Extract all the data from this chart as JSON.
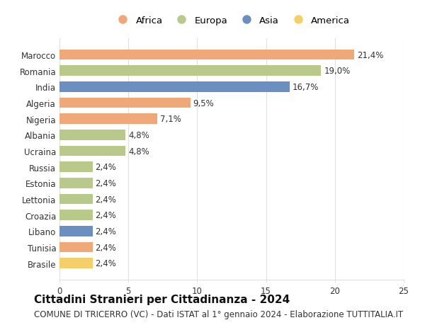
{
  "countries": [
    "Marocco",
    "Romania",
    "India",
    "Algeria",
    "Nigeria",
    "Albania",
    "Ucraina",
    "Russia",
    "Estonia",
    "Lettonia",
    "Croazia",
    "Libano",
    "Tunisia",
    "Brasile"
  ],
  "values": [
    21.4,
    19.0,
    16.7,
    9.5,
    7.1,
    4.8,
    4.8,
    2.4,
    2.4,
    2.4,
    2.4,
    2.4,
    2.4,
    2.4
  ],
  "labels": [
    "21,4%",
    "19,0%",
    "16,7%",
    "9,5%",
    "7,1%",
    "4,8%",
    "4,8%",
    "2,4%",
    "2,4%",
    "2,4%",
    "2,4%",
    "2,4%",
    "2,4%",
    "2,4%"
  ],
  "continents": [
    "Africa",
    "Europa",
    "Asia",
    "Africa",
    "Africa",
    "Europa",
    "Europa",
    "Europa",
    "Europa",
    "Europa",
    "Europa",
    "Asia",
    "Africa",
    "America"
  ],
  "colors": {
    "Africa": "#F0A878",
    "Europa": "#B8C98A",
    "Asia": "#6A8FC0",
    "America": "#F5D06A"
  },
  "legend_order": [
    "Africa",
    "Europa",
    "Asia",
    "America"
  ],
  "title": "Cittadini Stranieri per Cittadinanza - 2024",
  "subtitle": "COMUNE DI TRICERRO (VC) - Dati ISTAT al 1° gennaio 2024 - Elaborazione TUTTITALIA.IT",
  "xlim": [
    0,
    25
  ],
  "xticks": [
    0,
    5,
    10,
    15,
    20,
    25
  ],
  "background_color": "#ffffff",
  "grid_color": "#e0e0e0",
  "bar_height": 0.65,
  "label_fontsize": 8.5,
  "title_fontsize": 11,
  "subtitle_fontsize": 8.5,
  "ytick_fontsize": 8.5,
  "xtick_fontsize": 8.5
}
